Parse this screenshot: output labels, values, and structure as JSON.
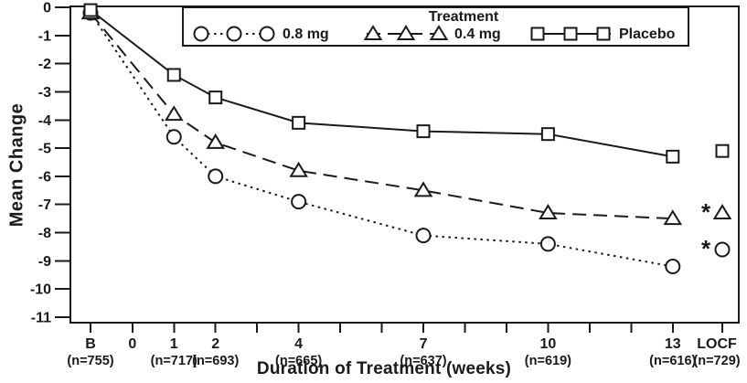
{
  "colors": {
    "ink": "#1a1a1a",
    "background": "#ffffff",
    "marker_fill": "#ffffff"
  },
  "chart_data": {
    "type": "line",
    "title": "",
    "xlabel": "Duration of Treatment (weeks)",
    "ylabel": "Mean Change",
    "grid": false,
    "y_axis": {
      "range": [
        -11,
        0
      ],
      "ticks": [
        0,
        -1,
        -2,
        -3,
        -4,
        -5,
        -6,
        -7,
        -8,
        -9,
        -10,
        -11
      ]
    },
    "x_axis": {
      "ticks": [
        {
          "pos": "B",
          "label": "B",
          "n": "(n=755)"
        },
        {
          "pos": 0,
          "label": "0",
          "n": ""
        },
        {
          "pos": 1,
          "label": "1",
          "n": "(n=717)"
        },
        {
          "pos": 2,
          "label": "2",
          "n": "(n=693)"
        },
        {
          "pos": 3,
          "label": "",
          "n": ""
        },
        {
          "pos": 4,
          "label": "4",
          "n": "(n=665)"
        },
        {
          "pos": 5,
          "label": "",
          "n": ""
        },
        {
          "pos": 6,
          "label": "",
          "n": ""
        },
        {
          "pos": 7,
          "label": "7",
          "n": "(n=637)"
        },
        {
          "pos": 8,
          "label": "",
          "n": ""
        },
        {
          "pos": 9,
          "label": "",
          "n": ""
        },
        {
          "pos": 10,
          "label": "10",
          "n": "(n=619)"
        },
        {
          "pos": 11,
          "label": "",
          "n": ""
        },
        {
          "pos": 12,
          "label": "",
          "n": ""
        },
        {
          "pos": 13,
          "label": "13",
          "n": "(n=616)"
        },
        {
          "pos": "LOCF",
          "label": "LOCF",
          "n": "(n=729)"
        }
      ]
    },
    "legend": {
      "title": "Treatment",
      "position": "top-inside"
    },
    "series": [
      {
        "name": "0.8 mg",
        "marker": "circle",
        "line": "dotted",
        "points": [
          [
            "B",
            -0.2
          ],
          [
            1,
            -4.6
          ],
          [
            2,
            -6.0
          ],
          [
            4,
            -6.9
          ],
          [
            7,
            -8.1
          ],
          [
            10,
            -8.4
          ],
          [
            13,
            -9.2
          ]
        ],
        "locf": {
          "value": -8.6,
          "asterisk": "*"
        }
      },
      {
        "name": "0.4 mg",
        "marker": "triangle",
        "line": "dashed",
        "points": [
          [
            "B",
            -0.2
          ],
          [
            1,
            -3.8
          ],
          [
            2,
            -4.8
          ],
          [
            4,
            -5.8
          ],
          [
            7,
            -6.5
          ],
          [
            10,
            -7.3
          ],
          [
            13,
            -7.5
          ]
        ],
        "locf": {
          "value": -7.3,
          "asterisk": "*"
        }
      },
      {
        "name": "Placebo",
        "marker": "square",
        "line": "solid",
        "points": [
          [
            "B",
            -0.1
          ],
          [
            1,
            -2.4
          ],
          [
            2,
            -3.2
          ],
          [
            4,
            -4.1
          ],
          [
            7,
            -4.4
          ],
          [
            10,
            -4.5
          ],
          [
            13,
            -5.3
          ]
        ],
        "locf": {
          "value": -5.1,
          "asterisk": ""
        }
      }
    ]
  }
}
